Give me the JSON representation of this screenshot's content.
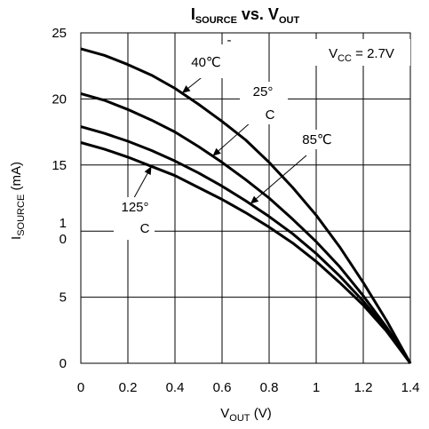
{
  "chart_data": {
    "type": "line",
    "title": {
      "main": "I",
      "main_sub": "SOURCE",
      "mid": " vs. V",
      "mid_sub": "OUT"
    },
    "xlabel": {
      "main": "V",
      "sub": "OUT",
      "unit": " (V)"
    },
    "ylabel": {
      "main": "I",
      "sub": "SOURCE",
      "unit": " (mA)"
    },
    "xlim": [
      0,
      1.4
    ],
    "ylim": [
      0,
      25
    ],
    "grid": true,
    "x_ticks": [
      0,
      0.2,
      0.4,
      0.6,
      0.8,
      1,
      1.2,
      1.4
    ],
    "x_tick_labels": [
      "0",
      "0.2",
      "0.4",
      "0.6",
      "0.8",
      "1",
      "1.2",
      "1.4"
    ],
    "y_ticks": [
      0,
      5,
      10,
      15,
      20,
      25
    ],
    "y_tick_labels": [
      "0",
      "5",
      "1\n0",
      "15",
      "20",
      "25"
    ],
    "annotation_box": {
      "main": "V",
      "sub": "CC",
      "rest": " = 2.7V"
    },
    "series": [
      {
        "name": "-40℃",
        "x": [
          0,
          0.1,
          0.2,
          0.3,
          0.4,
          0.5,
          0.6,
          0.7,
          0.8,
          0.9,
          1.0,
          1.1,
          1.2,
          1.3,
          1.4
        ],
        "y": [
          23.8,
          23.3,
          22.6,
          21.8,
          20.8,
          19.6,
          18.3,
          16.9,
          15.2,
          13.3,
          11.2,
          8.8,
          6.1,
          3.2,
          0
        ]
      },
      {
        "name": "25°C",
        "x": [
          0,
          0.1,
          0.2,
          0.3,
          0.4,
          0.5,
          0.6,
          0.7,
          0.8,
          0.9,
          1.0,
          1.1,
          1.2,
          1.3,
          1.4
        ],
        "y": [
          20.4,
          19.9,
          19.2,
          18.4,
          17.5,
          16.4,
          15.2,
          13.9,
          12.5,
          10.9,
          9.2,
          7.3,
          5.1,
          2.7,
          0
        ]
      },
      {
        "name": "85℃",
        "x": [
          0,
          0.1,
          0.2,
          0.3,
          0.4,
          0.5,
          0.6,
          0.7,
          0.8,
          0.9,
          1.0,
          1.1,
          1.2,
          1.3,
          1.4
        ],
        "y": [
          17.9,
          17.4,
          16.8,
          16.1,
          15.3,
          14.4,
          13.4,
          12.3,
          11.1,
          9.8,
          8.3,
          6.6,
          4.7,
          2.5,
          0
        ]
      },
      {
        "name": "125°C",
        "x": [
          0,
          0.1,
          0.2,
          0.3,
          0.4,
          0.5,
          0.6,
          0.7,
          0.8,
          0.9,
          1.0,
          1.1,
          1.2,
          1.3,
          1.4
        ],
        "y": [
          16.7,
          16.2,
          15.6,
          14.9,
          14.2,
          13.3,
          12.4,
          11.4,
          10.3,
          9.1,
          7.7,
          6.1,
          4.4,
          2.4,
          0
        ]
      }
    ],
    "labels": [
      {
        "series": 0,
        "parts": [
          "-",
          "40℃"
        ]
      },
      {
        "series": 1,
        "parts": [
          "25°",
          "C"
        ]
      },
      {
        "series": 2,
        "parts": [
          "85℃"
        ]
      },
      {
        "series": 3,
        "parts": [
          "125°",
          "C"
        ]
      }
    ],
    "line_color": "#000000",
    "grid_color": "#000000"
  }
}
